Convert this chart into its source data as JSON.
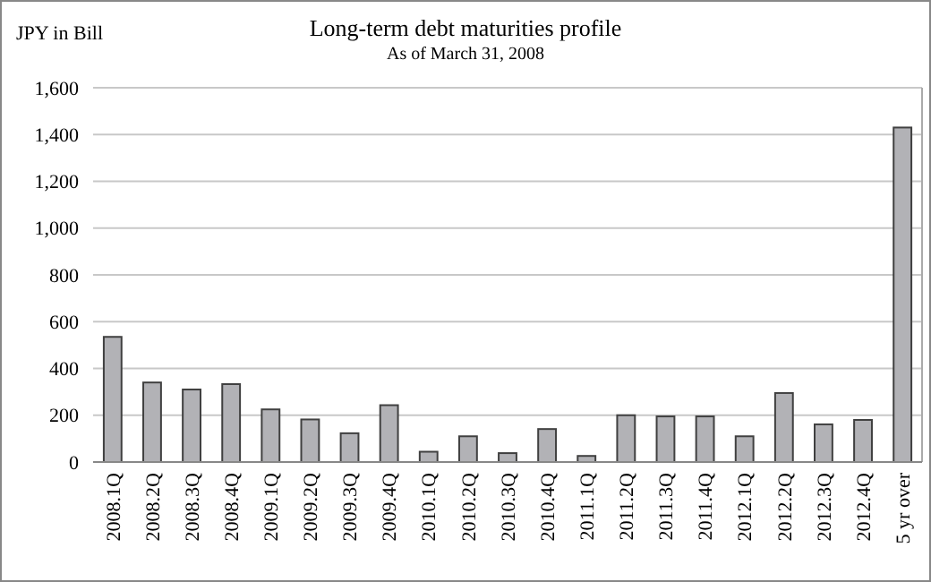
{
  "chart_data": {
    "type": "bar",
    "title": "Long-term debt maturities profile",
    "subtitle": "As of March 31, 2008",
    "ylabel": "JPY in Bill",
    "categories": [
      "2008.1Q",
      "2008.2Q",
      "2008.3Q",
      "2008.4Q",
      "2009.1Q",
      "2009.2Q",
      "2009.3Q",
      "2009.4Q",
      "2010.1Q",
      "2010.2Q",
      "2010.3Q",
      "2010.4Q",
      "2011.1Q",
      "2011.2Q",
      "2011.3Q",
      "2011.4Q",
      "2012.1Q",
      "2012.2Q",
      "2012.3Q",
      "2012.4Q",
      "5 yr over"
    ],
    "values": [
      535,
      340,
      310,
      333,
      225,
      182,
      123,
      243,
      44,
      110,
      38,
      141,
      26,
      200,
      195,
      195,
      110,
      295,
      161,
      180,
      1430
    ],
    "color": "#b2b2b6",
    "ylim": [
      0,
      1600
    ],
    "yticks": [
      0,
      {
        "value": 200,
        "label": "200"
      },
      {
        "value": 400,
        "label": "400"
      },
      {
        "value": 600,
        "label": "600"
      },
      {
        "value": 800,
        "label": "800"
      },
      {
        "value": 1000,
        "label": "1,000"
      },
      {
        "value": 1200,
        "label": "1,200"
      },
      {
        "value": 1400,
        "label": "1,400"
      },
      {
        "value": 1600,
        "label": "1,600"
      }
    ],
    "grid": "y"
  }
}
